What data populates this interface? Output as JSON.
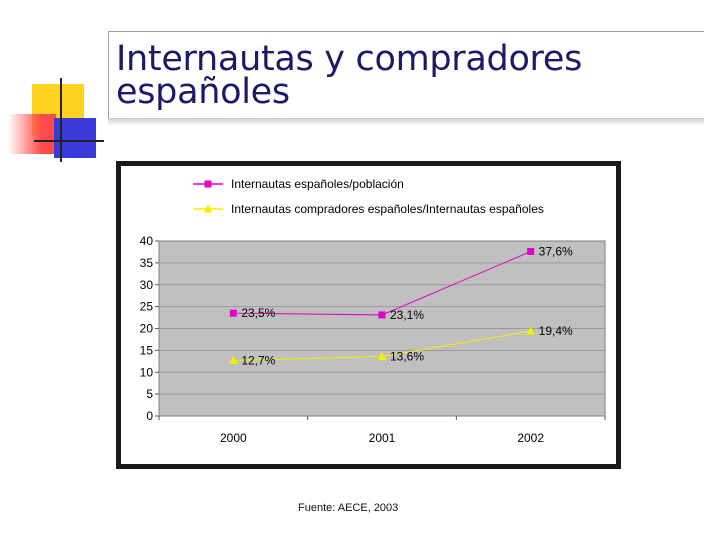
{
  "title": "Internautas y  compradores españoles",
  "source": "Fuente: AECE, 2003",
  "chart_data": {
    "type": "line",
    "x": [
      "2000",
      "2001",
      "2002"
    ],
    "ylim": [
      0,
      40
    ],
    "yticks": [
      "40",
      "35",
      "30",
      "25",
      "20",
      "15",
      "10",
      "5",
      "0"
    ],
    "grid": true,
    "legend_position": "top",
    "series": [
      {
        "name": "Internautas españoles/población",
        "values": [
          23.5,
          23.1,
          37.6
        ],
        "labels": [
          "23,5%",
          "23,1%",
          "37,6%"
        ],
        "color": "#e000c8",
        "marker": "square"
      },
      {
        "name": "Internautas compradores españoles/Internautas españoles",
        "values": [
          12.7,
          13.6,
          19.4
        ],
        "labels": [
          "12,7%",
          "13,6%",
          "19,4%"
        ],
        "color": "#f5f000",
        "marker": "triangle"
      }
    ],
    "plot_background": "#c0c0c0"
  }
}
